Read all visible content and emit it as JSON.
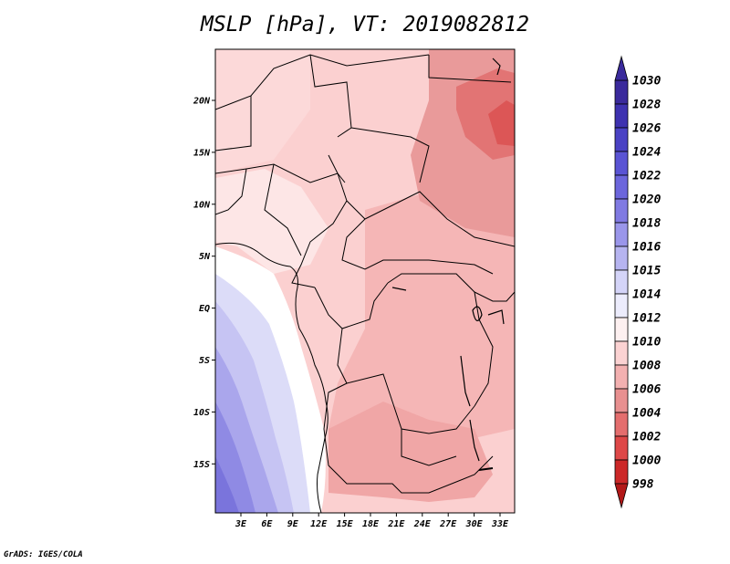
{
  "title": "MSLP [hPa], VT: 2019082812",
  "credit": "GrADS: IGES/COLA",
  "map": {
    "lat_labels": [
      "20N",
      "15N",
      "10N",
      "5N",
      "EQ",
      "5S",
      "10S",
      "15S"
    ],
    "lon_labels": [
      "3E",
      "6E",
      "9E",
      "12E",
      "15E",
      "18E",
      "21E",
      "24E",
      "27E",
      "30E",
      "33E"
    ]
  },
  "colorbar": {
    "levels": [
      "1030",
      "1028",
      "1026",
      "1024",
      "1022",
      "1020",
      "1018",
      "1016",
      "1015",
      "1014",
      "1012",
      "1010",
      "1008",
      "1006",
      "1004",
      "1002",
      "1000",
      "998"
    ],
    "colors": [
      "#3a2a9c",
      "#3e32b0",
      "#4a42c4",
      "#5a54d4",
      "#6c66dc",
      "#807ae2",
      "#9a96ea",
      "#b6b4f0",
      "#d4d4f8",
      "#ececfc",
      "#fdf0f0",
      "#fbd2d2",
      "#f3b0b0",
      "#e89090",
      "#e46e6e",
      "#de4848",
      "#cc2828",
      "#b21818"
    ]
  }
}
